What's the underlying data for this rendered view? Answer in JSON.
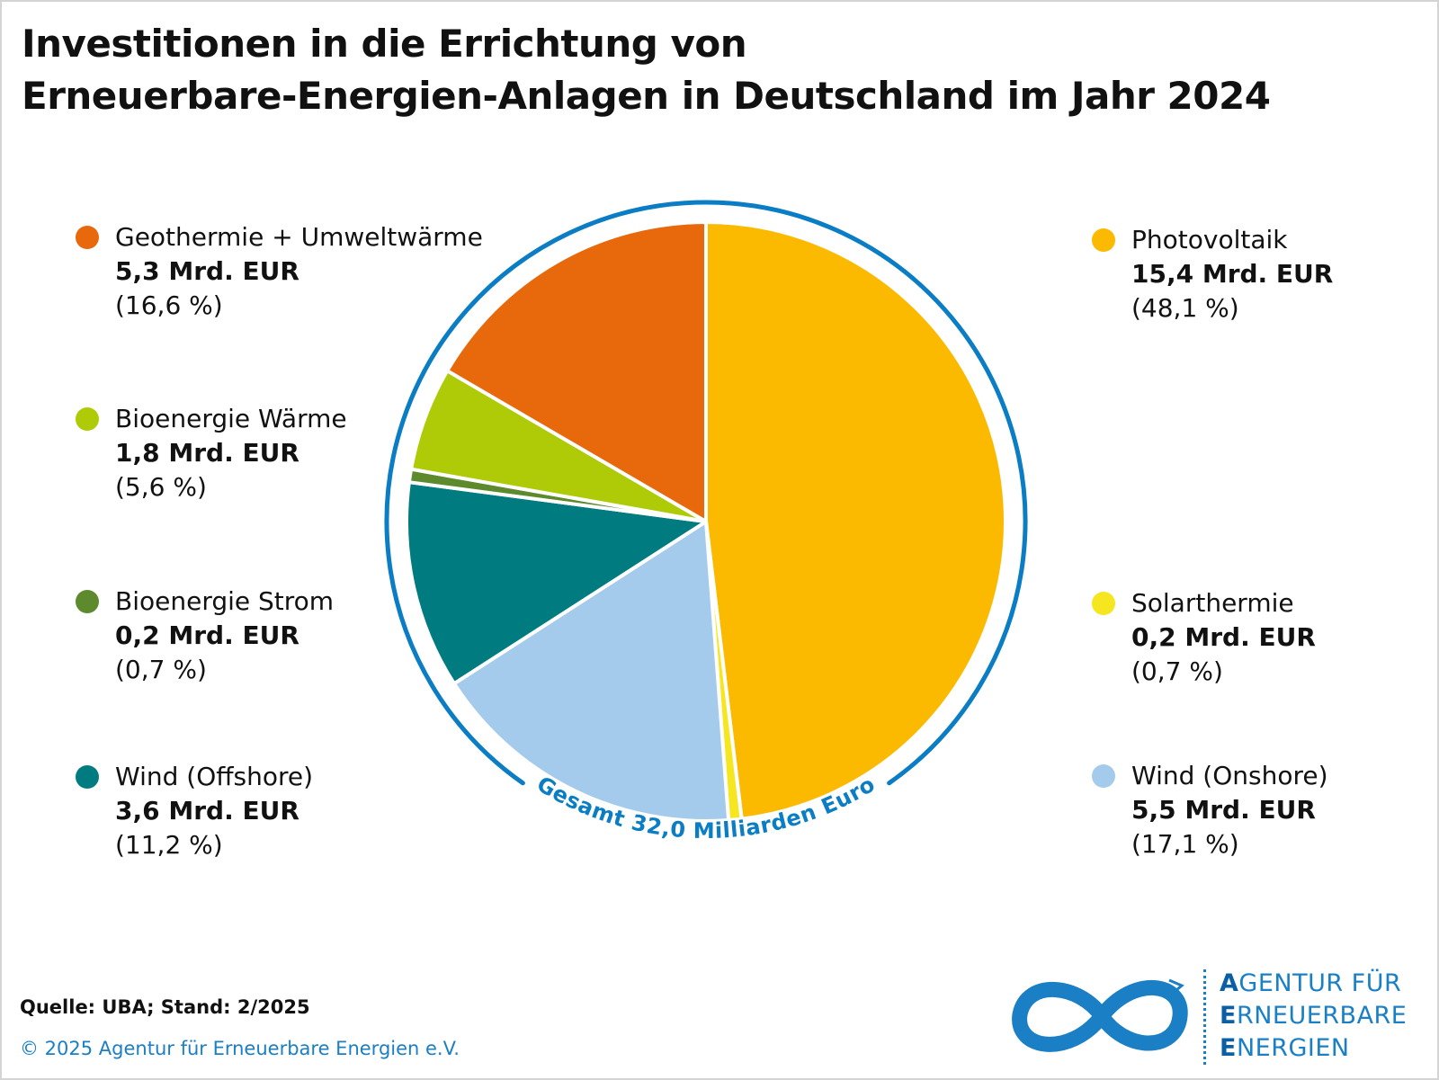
{
  "title_line1": "Investitionen in die Errichtung von",
  "title_line2": "Erneuerbare-Energien-Anlagen in Deutschland im Jahr 2024",
  "total_label": "Gesamt 32,0 Milliarden Euro",
  "total_color": "#0a7dc4",
  "source": "Quelle: UBA; Stand: 2/2025",
  "copyright": "© 2025 Agentur für Erneuerbare Energien e.V.",
  "logo": {
    "line1_first": "A",
    "line1_rest": "GENTUR FÜR",
    "line2_first": "E",
    "line2_rest": "RNEUERBARE",
    "line3_first": "E",
    "line3_rest": "NERGIEN",
    "icon": "infinity-logo-icon"
  },
  "legend": {
    "geothermie": {
      "name": "Geothermie + Umweltwärme",
      "value": "5,3 Mrd. EUR",
      "pct": "(16,6 %)"
    },
    "bio_waerme": {
      "name": "Bioenergie Wärme",
      "value": "1,8 Mrd. EUR",
      "pct": "(5,6 %)"
    },
    "bio_strom": {
      "name": "Bioenergie Strom",
      "value": "0,2 Mrd. EUR",
      "pct": "(0,7 %)"
    },
    "offshore": {
      "name": "Wind (Offshore)",
      "value": "3,6 Mrd. EUR",
      "pct": "(11,2 %)"
    },
    "pv": {
      "name": "Photovoltaik",
      "value": "15,4 Mrd. EUR",
      "pct": "(48,1 %)"
    },
    "solarthermie": {
      "name": "Solarthermie",
      "value": "0,2 Mrd. EUR",
      "pct": "(0,7 %)"
    },
    "onshore": {
      "name": "Wind (Onshore)",
      "value": "5,5 Mrd. EUR",
      "pct": "(17,1 %)"
    }
  },
  "chart_data": {
    "type": "pie",
    "title": "Investitionen in die Errichtung von Erneuerbare-Energien-Anlagen in Deutschland im Jahr 2024",
    "unit": "Mrd. EUR",
    "total": 32.0,
    "slices": [
      {
        "label": "Photovoltaik",
        "value": 15.4,
        "percent": 48.1,
        "color": "#fbb900"
      },
      {
        "label": "Solarthermie",
        "value": 0.2,
        "percent": 0.7,
        "color": "#f5e61f"
      },
      {
        "label": "Wind (Onshore)",
        "value": 5.5,
        "percent": 17.1,
        "color": "#a4cbec"
      },
      {
        "label": "Wind (Offshore)",
        "value": 3.6,
        "percent": 11.2,
        "color": "#007c80"
      },
      {
        "label": "Bioenergie Strom",
        "value": 0.2,
        "percent": 0.7,
        "color": "#5e8a2e"
      },
      {
        "label": "Bioenergie Wärme",
        "value": 1.8,
        "percent": 5.6,
        "color": "#afcb08"
      },
      {
        "label": "Geothermie + Umweltwärme",
        "value": 5.3,
        "percent": 16.6,
        "color": "#e8680c"
      }
    ]
  }
}
